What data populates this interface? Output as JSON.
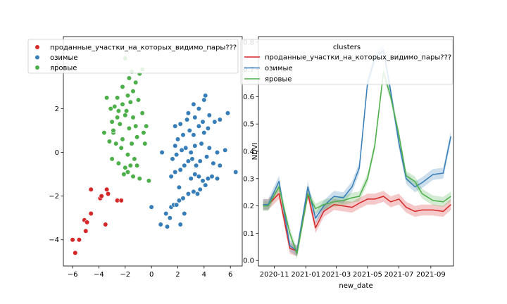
{
  "colors": {
    "red": "#d62728",
    "blue": "#377eb8",
    "green": "#4daf4a"
  },
  "chart_data": [
    {
      "type": "scatter",
      "xlim": [
        -6.7,
        6.9
      ],
      "ylim": [
        -5.2,
        5.3
      ],
      "xticks": [
        -6,
        -4,
        -2,
        0,
        2,
        4,
        6
      ],
      "yticks": [
        -4,
        -2,
        0,
        2,
        4
      ],
      "xtick_labels": [
        "−6",
        "−4",
        "−2",
        "0",
        "2",
        "4",
        "6"
      ],
      "ytick_labels": [
        "−4",
        "−2",
        "0",
        "2",
        "4"
      ],
      "grid": false,
      "legend_position": "upper-left",
      "legend_entries": [
        "проданные_участки_на_которых_видимо_пары???",
        "озимые",
        "яровые"
      ],
      "series": [
        {
          "name": "проданные_участки_на_которых_видимо_пары???",
          "color": "#d62728",
          "points": [
            [
              -6,
              -4
            ],
            [
              -5.5,
              -4
            ],
            [
              -5.8,
              -4.6
            ],
            [
              -5.1,
              -3.1
            ],
            [
              -4.9,
              -3.2
            ],
            [
              -5,
              -3.6
            ],
            [
              -4.6,
              -2.8
            ],
            [
              -4.6,
              -1.7
            ],
            [
              -3.9,
              -2.1
            ],
            [
              -3.8,
              -2
            ],
            [
              -3.4,
              -1.7
            ],
            [
              -3.3,
              -1.9
            ],
            [
              -3.5,
              -3.3
            ],
            [
              -2.6,
              -2.2
            ],
            [
              -2.3,
              -2.2
            ]
          ]
        },
        {
          "name": "озимые",
          "color": "#377eb8",
          "points": [
            [
              0,
              -2.5
            ],
            [
              0.7,
              -3.3
            ],
            [
              1.2,
              -3.4
            ],
            [
              1.4,
              -3
            ],
            [
              1.1,
              -2.8
            ],
            [
              1.5,
              -2.5
            ],
            [
              1.7,
              -2.4
            ],
            [
              1.9,
              -2.4
            ],
            [
              2.2,
              -3.3
            ],
            [
              2.5,
              -2.8
            ],
            [
              2.1,
              -2.2
            ],
            [
              2.4,
              -2.1
            ],
            [
              2.8,
              -1.9
            ],
            [
              3.2,
              -1.8
            ],
            [
              3.5,
              -1.9
            ],
            [
              3.7,
              -1.7
            ],
            [
              4.1,
              -1.5
            ],
            [
              4.3,
              -1.2
            ],
            [
              3.0,
              -1.2
            ],
            [
              3.3,
              -1.0
            ],
            [
              3.6,
              -1.1
            ],
            [
              3.9,
              -1.3
            ],
            [
              4.6,
              -1.1
            ],
            [
              5.0,
              -1.2
            ],
            [
              1.5,
              -1.1
            ],
            [
              1.8,
              -0.9
            ],
            [
              2.2,
              -0.8
            ],
            [
              2.5,
              -0.6
            ],
            [
              2.8,
              -0.4
            ],
            [
              3.1,
              -0.3
            ],
            [
              3.4,
              -0.6
            ],
            [
              3.7,
              -0.4
            ],
            [
              4.2,
              -0.2
            ],
            [
              4.7,
              -0.5
            ],
            [
              5.2,
              -0.6
            ],
            [
              6.4,
              -0.9
            ],
            [
              1.6,
              -0.3
            ],
            [
              1.9,
              -0.1
            ],
            [
              2.3,
              0.1
            ],
            [
              2.6,
              0.2
            ],
            [
              3.0,
              0.0
            ],
            [
              3.3,
              0.3
            ],
            [
              3.8,
              0.4
            ],
            [
              4.4,
              0.2
            ],
            [
              5.0,
              0.0
            ],
            [
              5.6,
              0.1
            ],
            [
              0.8,
              0
            ],
            [
              2.0,
              0.6
            ],
            [
              2.4,
              0.8
            ],
            [
              2.9,
              1.0
            ],
            [
              3.2,
              0.8
            ],
            [
              3.6,
              1.2
            ],
            [
              4.0,
              0.9
            ],
            [
              4.3,
              1.1
            ],
            [
              4.8,
              1.4
            ],
            [
              5.2,
              1.5
            ],
            [
              1.8,
              1.2
            ],
            [
              2.2,
              1.3
            ],
            [
              2.7,
              1.5
            ],
            [
              3.3,
              1.6
            ],
            [
              3.9,
              1.4
            ],
            [
              4.4,
              1.7
            ],
            [
              5.8,
              1.8
            ],
            [
              2.8,
              1.8
            ],
            [
              3.6,
              2.0
            ],
            [
              4.0,
              2.4
            ],
            [
              3.2,
              2.2
            ],
            [
              4.1,
              2.6
            ],
            [
              1.8,
              0.3
            ],
            [
              2.1,
              -1.6
            ]
          ]
        },
        {
          "name": "яровые",
          "color": "#4daf4a",
          "points": [
            [
              -0.2,
              -1.3
            ],
            [
              -0.9,
              -1.2
            ],
            [
              -1.4,
              -1.1
            ],
            [
              -1.8,
              -0.9
            ],
            [
              -2.1,
              -1.0
            ],
            [
              -1.6,
              -0.6
            ],
            [
              -2.0,
              -0.7
            ],
            [
              -2.5,
              -0.5
            ],
            [
              -3.0,
              -0.3
            ],
            [
              -1.3,
              -0.3
            ],
            [
              -1.8,
              -0.1
            ],
            [
              -2.3,
              0.2
            ],
            [
              -2.7,
              0.4
            ],
            [
              -3.2,
              0.5
            ],
            [
              -3.6,
              0.9
            ],
            [
              -2.9,
              0.9
            ],
            [
              -2.2,
              0.6
            ],
            [
              -1.5,
              0.4
            ],
            [
              -1.1,
              0.7
            ],
            [
              -0.6,
              0.9
            ],
            [
              -0.4,
              1.2
            ],
            [
              -1.2,
              1.2
            ],
            [
              -1.7,
              1.1
            ],
            [
              -2.4,
              1.3
            ],
            [
              -3.0,
              1.4
            ],
            [
              -2.6,
              1.6
            ],
            [
              -2.0,
              1.7
            ],
            [
              -1.4,
              1.6
            ],
            [
              -0.7,
              1.8
            ],
            [
              -1.9,
              1.9
            ],
            [
              -2.5,
              1.9
            ],
            [
              -3.1,
              2.0
            ],
            [
              -2.8,
              2.1
            ],
            [
              -2.2,
              2.2
            ],
            [
              -1.6,
              2.3
            ],
            [
              -1.0,
              2.4
            ],
            [
              -2.6,
              2.5
            ],
            [
              -3.4,
              2.5
            ],
            [
              -1.8,
              2.6
            ],
            [
              -1.4,
              2.8
            ],
            [
              -2.2,
              3.0
            ],
            [
              -1.2,
              3.2
            ],
            [
              -1.7,
              3.4
            ],
            [
              -0.9,
              3.6
            ],
            [
              -1.5,
              3.7
            ],
            [
              -0.7,
              3.8
            ],
            [
              -2.0,
              4.3
            ],
            [
              -2.9,
              1.0
            ],
            [
              -0.5,
              0.4
            ],
            [
              -1.1,
              -0.6
            ]
          ]
        }
      ]
    },
    {
      "type": "line",
      "xlabel": "new_date",
      "ylabel": "NDVI",
      "ylim": [
        -0.02,
        0.82
      ],
      "xlim": [
        "2020-10-01",
        "2021-10-15"
      ],
      "xticks": [
        "2020-11-01",
        "2021-01-01",
        "2021-03-01",
        "2021-05-01",
        "2021-07-01",
        "2021-09-01"
      ],
      "xtick_labels": [
        "2020-11",
        "2021-01",
        "2021-03",
        "2021-05",
        "2021-07",
        "2021-09"
      ],
      "yticks": [
        0.0,
        0.1,
        0.2,
        0.3,
        0.4,
        0.5,
        0.6,
        0.7,
        0.8
      ],
      "ytick_labels": [
        "0.0",
        "0.1",
        "0.2",
        "0.3",
        "0.4",
        "0.5",
        "0.6",
        "0.7",
        "0.8"
      ],
      "grid": false,
      "legend_title": "clusters",
      "legend_position": "top",
      "legend_entries": [
        "проданные_участки_на_которых_видимо_пары???",
        "озимые",
        "яровые"
      ],
      "dates": [
        "2020-10-10",
        "2020-10-20",
        "2020-11-10",
        "2020-12-01",
        "2020-12-15",
        "2021-01-05",
        "2021-01-20",
        "2021-02-05",
        "2021-02-25",
        "2021-03-15",
        "2021-04-01",
        "2021-04-15",
        "2021-05-01",
        "2021-05-15",
        "2021-06-01",
        "2021-06-15",
        "2021-07-01",
        "2021-07-15",
        "2021-08-01",
        "2021-08-15",
        "2021-09-05",
        "2021-09-25",
        "2021-10-10"
      ],
      "series": [
        {
          "name": "проданные_участки_на_которых_видимо_пары???",
          "color": "#d62728",
          "values": [
            0.205,
            0.205,
            0.245,
            0.045,
            0.035,
            0.245,
            0.12,
            0.18,
            0.205,
            0.2,
            0.195,
            0.21,
            0.225,
            0.225,
            0.235,
            0.215,
            0.225,
            0.195,
            0.18,
            0.185,
            0.185,
            0.18,
            0.205
          ],
          "ci": 0.02
        },
        {
          "name": "озимые",
          "color": "#377eb8",
          "values": [
            0.205,
            0.205,
            0.29,
            0.055,
            0.035,
            0.27,
            0.155,
            0.2,
            0.235,
            0.23,
            0.27,
            0.34,
            0.65,
            0.74,
            0.77,
            0.62,
            0.43,
            0.3,
            0.27,
            0.285,
            0.315,
            0.32,
            0.455
          ],
          "ci": 0.02
        },
        {
          "name": "яровые",
          "color": "#4daf4a",
          "values": [
            0.2,
            0.2,
            0.27,
            0.1,
            0.025,
            0.245,
            0.19,
            0.205,
            0.215,
            0.22,
            0.23,
            0.235,
            0.3,
            0.42,
            0.69,
            0.6,
            0.46,
            0.31,
            0.29,
            0.245,
            0.22,
            0.215,
            0.235
          ],
          "ci": 0.018
        }
      ]
    }
  ]
}
